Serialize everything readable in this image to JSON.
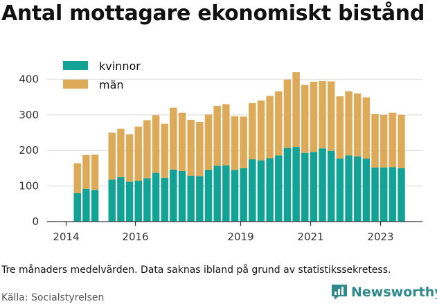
{
  "title": "Antal mottagare ekonomiskt bistånd",
  "note": "Tre månaders medelvärden. Data saknas ibland på grund av statistikssekretess.",
  "source": "Källa: Socialstyrelsen",
  "brand": {
    "name": "Newsworthy",
    "icon": "newsworthy-logo-icon",
    "color": "#2f8a8e"
  },
  "chart_data": {
    "type": "bar",
    "stacked": true,
    "x_tick_labels": [
      "2014",
      "2016",
      "2019",
      "2021",
      "2023"
    ],
    "y_ticks": [
      0,
      100,
      200,
      300,
      400
    ],
    "ylim": [
      0,
      430
    ],
    "grid": true,
    "legend_position": "top-left",
    "series": [
      {
        "name": "kvinnor",
        "color": "#12a396",
        "values": [
          80,
          92,
          89,
          118,
          125,
          112,
          115,
          122,
          137,
          123,
          146,
          142,
          129,
          128,
          145,
          157,
          158,
          145,
          150,
          175,
          172,
          178,
          186,
          207,
          210,
          193,
          196,
          206,
          199,
          177,
          186,
          183,
          177,
          152,
          152,
          153,
          150
        ]
      },
      {
        "name": "män",
        "color": "#dcaa58",
        "values": [
          84,
          95,
          99,
          132,
          136,
          133,
          152,
          163,
          162,
          152,
          174,
          164,
          157,
          152,
          156,
          168,
          172,
          151,
          145,
          158,
          168,
          175,
          180,
          192,
          210,
          191,
          197,
          189,
          195,
          175,
          180,
          177,
          172,
          150,
          148,
          153,
          150
        ]
      }
    ]
  }
}
